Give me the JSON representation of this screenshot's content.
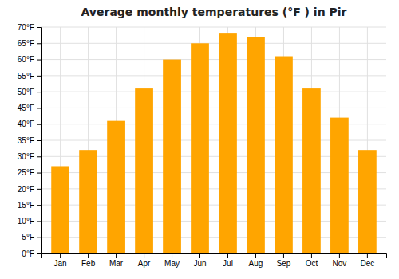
{
  "chart_data": {
    "type": "bar",
    "title": "Average monthly temperatures (°F ) in Pir",
    "categories": [
      "Jan",
      "Feb",
      "Mar",
      "Apr",
      "May",
      "Jun",
      "Jul",
      "Aug",
      "Sep",
      "Oct",
      "Nov",
      "Dec"
    ],
    "values": [
      27,
      32,
      41,
      51,
      60,
      65,
      68,
      67,
      61,
      51,
      42,
      32
    ],
    "color": "#FFA500",
    "ylim": [
      0,
      70
    ],
    "yticks": [
      {
        "value": 0,
        "label": "0°F"
      },
      {
        "value": 5,
        "label": "5°F"
      },
      {
        "value": 10,
        "label": "10°F"
      },
      {
        "value": 15,
        "label": "15°F"
      },
      {
        "value": 20,
        "label": "20°F"
      },
      {
        "value": 25,
        "label": "25°F"
      },
      {
        "value": 30,
        "label": "30°F"
      },
      {
        "value": 35,
        "label": "35°F"
      },
      {
        "value": 40,
        "label": "40°F"
      },
      {
        "value": 45,
        "label": "45°F"
      },
      {
        "value": 50,
        "label": "50°F"
      },
      {
        "value": 55,
        "label": "55°F"
      },
      {
        "value": 60,
        "label": "60°F"
      },
      {
        "value": 65,
        "label": "65°F"
      },
      {
        "value": 70,
        "label": "70°F"
      }
    ],
    "grid": true
  }
}
